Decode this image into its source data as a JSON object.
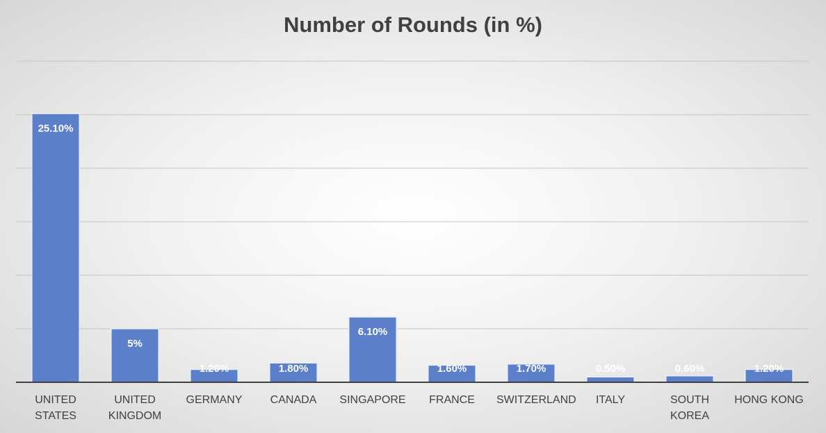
{
  "chart_data": {
    "type": "bar",
    "title": "Number of Rounds (in %)",
    "categories": [
      "UNITED STATES",
      "UNITED KINGDOM",
      "GERMANY",
      "CANADA",
      "SINGAPORE",
      "FRANCE",
      "SWITZERLAND",
      "ITALY",
      "SOUTH KOREA",
      "HONG KONG"
    ],
    "values": [
      25.1,
      5,
      1.2,
      1.8,
      6.1,
      1.6,
      1.7,
      0.5,
      0.6,
      1.2
    ],
    "value_labels": [
      "25.10%",
      "5%",
      "1.20%",
      "1.80%",
      "6.10%",
      "1.60%",
      "1.70%",
      "0.50%",
      "0.60%",
      "1.20%"
    ],
    "color": "#5b80c9",
    "ylim": [
      0,
      30
    ],
    "yticks": [
      0,
      5,
      10,
      15,
      20,
      25,
      30
    ],
    "grid": true
  }
}
